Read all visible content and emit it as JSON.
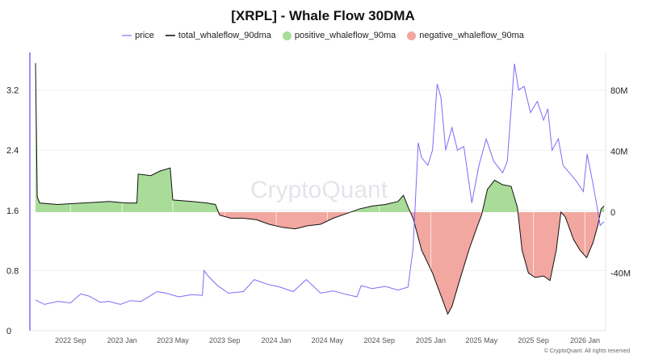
{
  "title": "[XRPL] - Whale Flow 30DMA",
  "copyright": "© CryptoQuant. All rights reserved",
  "watermark": "CryptoQuant",
  "colors": {
    "price": "#7b6cf6",
    "total": "#111111",
    "positive": "#a8dc98",
    "negative": "#f2a7a0"
  },
  "chart_data": {
    "type": "line",
    "legend": [
      {
        "name": "price",
        "marker": "line"
      },
      {
        "name": "total_whaleflow_90dma",
        "marker": "line"
      },
      {
        "name": "positive_whaleflow_90ma",
        "marker": "dot"
      },
      {
        "name": "negative_whaleflow_90ma",
        "marker": "dot"
      }
    ],
    "legend_position": "top",
    "x_ticks": [
      "2022 Sep",
      "2023 Jan",
      "2023 May",
      "2023 Sep",
      "2024 Jan",
      "2024 May",
      "2024 Sep",
      "2025 Jan",
      "2025 May",
      "2025 Sep",
      "2026 Jan"
    ],
    "x_tick_dates": [
      "2022-09-01",
      "2023-01-01",
      "2023-05-01",
      "2023-09-01",
      "2024-01-01",
      "2024-05-01",
      "2024-09-01",
      "2025-01-01",
      "2025-05-01",
      "2025-09-01",
      "2026-01-01"
    ],
    "xlim": [
      "2022-06-10",
      "2026-02-15"
    ],
    "y_left": {
      "ticks": [
        "0",
        "0.8",
        "1.6",
        "2.4",
        "3.2"
      ],
      "tick_values": [
        0,
        0.8,
        1.6,
        2.4,
        3.2
      ],
      "ylim": [
        0,
        3.7
      ]
    },
    "y_right": {
      "ticks": [
        "-40M",
        "0",
        "40M",
        "80M"
      ],
      "tick_values": [
        -40,
        0,
        40,
        80
      ],
      "ylim": [
        -78,
        105
      ],
      "unit": "M"
    },
    "series": [
      {
        "name": "price",
        "axis": "left",
        "points": [
          [
            "2022-06-10",
            0.41
          ],
          [
            "2022-07-01",
            0.35
          ],
          [
            "2022-08-01",
            0.39
          ],
          [
            "2022-09-01",
            0.37
          ],
          [
            "2022-09-25",
            0.49
          ],
          [
            "2022-10-15",
            0.46
          ],
          [
            "2022-11-10",
            0.38
          ],
          [
            "2022-12-01",
            0.39
          ],
          [
            "2022-12-28",
            0.35
          ],
          [
            "2023-01-20",
            0.4
          ],
          [
            "2023-02-15",
            0.39
          ],
          [
            "2023-03-25",
            0.52
          ],
          [
            "2023-04-15",
            0.5
          ],
          [
            "2023-05-15",
            0.45
          ],
          [
            "2023-06-15",
            0.48
          ],
          [
            "2023-07-10",
            0.47
          ],
          [
            "2023-07-14",
            0.8
          ],
          [
            "2023-07-25",
            0.72
          ],
          [
            "2023-08-15",
            0.6
          ],
          [
            "2023-09-10",
            0.5
          ],
          [
            "2023-10-15",
            0.52
          ],
          [
            "2023-11-10",
            0.68
          ],
          [
            "2023-12-10",
            0.62
          ],
          [
            "2024-01-10",
            0.58
          ],
          [
            "2024-02-10",
            0.52
          ],
          [
            "2024-03-12",
            0.68
          ],
          [
            "2024-04-15",
            0.5
          ],
          [
            "2024-05-15",
            0.53
          ],
          [
            "2024-06-10",
            0.49
          ],
          [
            "2024-07-10",
            0.45
          ],
          [
            "2024-07-20",
            0.6
          ],
          [
            "2024-08-15",
            0.56
          ],
          [
            "2024-09-15",
            0.59
          ],
          [
            "2024-10-15",
            0.54
          ],
          [
            "2024-11-08",
            0.58
          ],
          [
            "2024-11-20",
            1.1
          ],
          [
            "2024-12-02",
            2.5
          ],
          [
            "2024-12-10",
            2.3
          ],
          [
            "2024-12-25",
            2.2
          ],
          [
            "2025-01-05",
            2.4
          ],
          [
            "2025-01-16",
            3.28
          ],
          [
            "2025-01-25",
            3.1
          ],
          [
            "2025-02-05",
            2.4
          ],
          [
            "2025-02-20",
            2.7
          ],
          [
            "2025-03-05",
            2.4
          ],
          [
            "2025-03-20",
            2.45
          ],
          [
            "2025-04-08",
            1.7
          ],
          [
            "2025-04-25",
            2.2
          ],
          [
            "2025-05-12",
            2.55
          ],
          [
            "2025-05-30",
            2.25
          ],
          [
            "2025-06-20",
            2.1
          ],
          [
            "2025-07-01",
            2.25
          ],
          [
            "2025-07-18",
            3.55
          ],
          [
            "2025-07-28",
            3.2
          ],
          [
            "2025-08-10",
            3.25
          ],
          [
            "2025-08-25",
            2.9
          ],
          [
            "2025-09-10",
            3.05
          ],
          [
            "2025-09-25",
            2.8
          ],
          [
            "2025-10-05",
            2.95
          ],
          [
            "2025-10-15",
            2.4
          ],
          [
            "2025-10-30",
            2.55
          ],
          [
            "2025-11-10",
            2.2
          ],
          [
            "2025-11-25",
            2.1
          ],
          [
            "2025-12-10",
            2.0
          ],
          [
            "2025-12-28",
            1.85
          ],
          [
            "2026-01-06",
            2.35
          ],
          [
            "2026-01-20",
            1.95
          ],
          [
            "2026-01-31",
            1.6
          ],
          [
            "2026-02-06",
            1.4
          ],
          [
            "2026-02-15",
            1.45
          ]
        ]
      },
      {
        "name": "total_whaleflow_90dma",
        "axis": "right",
        "points": [
          [
            "2022-06-10",
            98
          ],
          [
            "2022-06-14",
            10
          ],
          [
            "2022-06-20",
            6
          ],
          [
            "2022-08-01",
            5
          ],
          [
            "2022-10-01",
            6
          ],
          [
            "2022-12-01",
            7
          ],
          [
            "2023-01-10",
            6
          ],
          [
            "2023-02-05",
            6
          ],
          [
            "2023-02-08",
            25
          ],
          [
            "2023-03-10",
            24
          ],
          [
            "2023-04-01",
            27
          ],
          [
            "2023-04-25",
            29
          ],
          [
            "2023-05-01",
            8
          ],
          [
            "2023-06-15",
            7
          ],
          [
            "2023-07-20",
            6
          ],
          [
            "2023-08-10",
            5
          ],
          [
            "2023-08-20",
            -2
          ],
          [
            "2023-09-15",
            -4
          ],
          [
            "2023-10-15",
            -4
          ],
          [
            "2023-11-15",
            -5
          ],
          [
            "2023-12-15",
            -8
          ],
          [
            "2024-01-15",
            -10
          ],
          [
            "2024-02-15",
            -11
          ],
          [
            "2024-03-15",
            -9
          ],
          [
            "2024-04-15",
            -8
          ],
          [
            "2024-05-15",
            -4
          ],
          [
            "2024-06-15",
            -1
          ],
          [
            "2024-07-15",
            2
          ],
          [
            "2024-08-15",
            4
          ],
          [
            "2024-09-15",
            5
          ],
          [
            "2024-10-15",
            7
          ],
          [
            "2024-10-28",
            11
          ],
          [
            "2024-11-10",
            2
          ],
          [
            "2024-11-20",
            -4
          ],
          [
            "2024-12-10",
            -25
          ],
          [
            "2025-01-05",
            -40
          ],
          [
            "2025-01-25",
            -55
          ],
          [
            "2025-02-10",
            -67
          ],
          [
            "2025-02-20",
            -62
          ],
          [
            "2025-03-10",
            -45
          ],
          [
            "2025-04-01",
            -25
          ],
          [
            "2025-04-20",
            -10
          ],
          [
            "2025-05-01",
            -2
          ],
          [
            "2025-05-15",
            15
          ],
          [
            "2025-06-01",
            21
          ],
          [
            "2025-06-20",
            18
          ],
          [
            "2025-07-10",
            17
          ],
          [
            "2025-07-25",
            3
          ],
          [
            "2025-08-05",
            -25
          ],
          [
            "2025-08-20",
            -40
          ],
          [
            "2025-09-05",
            -43
          ],
          [
            "2025-09-25",
            -42
          ],
          [
            "2025-10-10",
            -45
          ],
          [
            "2025-10-25",
            -25
          ],
          [
            "2025-11-05",
            0
          ],
          [
            "2025-11-15",
            -3
          ],
          [
            "2025-12-05",
            -18
          ],
          [
            "2025-12-20",
            -25
          ],
          [
            "2026-01-05",
            -30
          ],
          [
            "2026-01-20",
            -20
          ],
          [
            "2026-02-01",
            -8
          ],
          [
            "2026-02-08",
            2
          ],
          [
            "2026-02-15",
            4
          ]
        ]
      }
    ]
  }
}
